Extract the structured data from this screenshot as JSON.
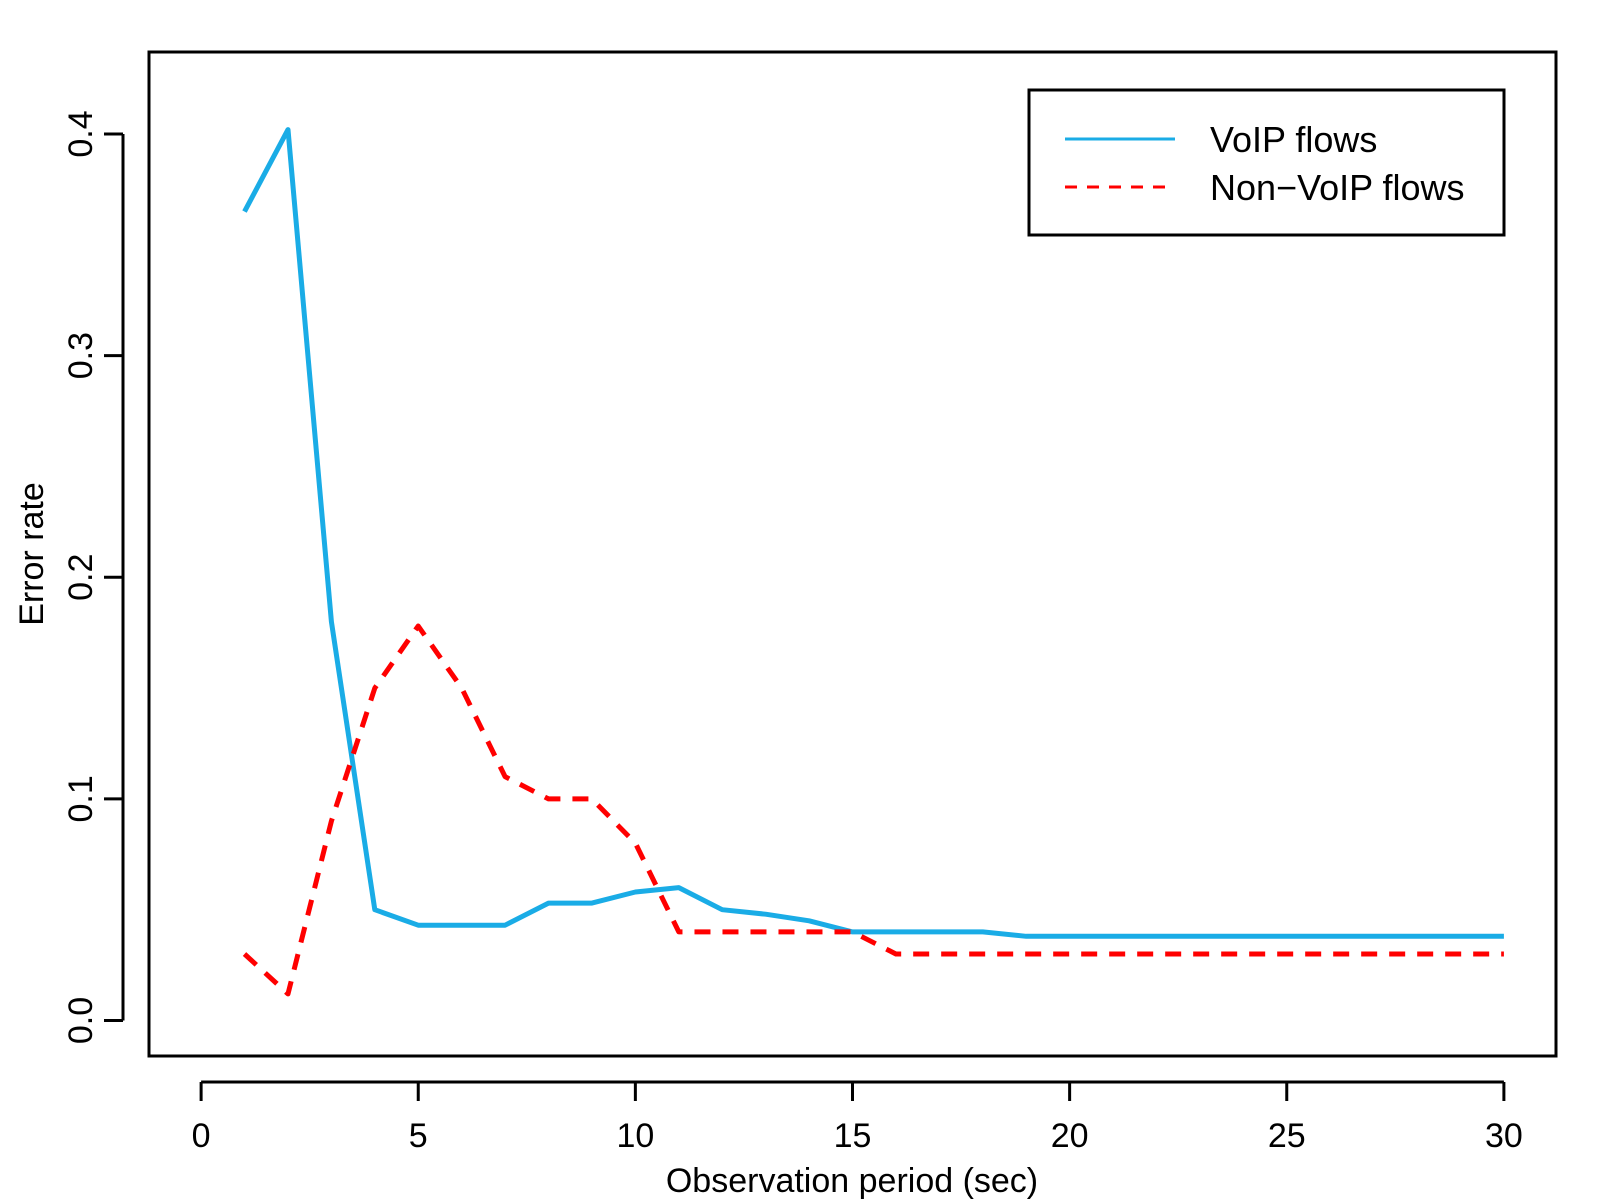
{
  "chart_data": {
    "type": "line",
    "title": "",
    "xlabel": "Observation period (sec)",
    "ylabel": "Error rate",
    "xlim": [
      -1.2,
      31.2
    ],
    "ylim": [
      -0.016,
      0.437
    ],
    "x_ticks": [
      "0",
      "5",
      "10",
      "15",
      "20",
      "25",
      "30"
    ],
    "y_ticks": [
      "0.0",
      "0.1",
      "0.2",
      "0.3",
      "0.4"
    ],
    "grid": false,
    "legend_position": "top-right",
    "x": [
      1,
      2,
      3,
      4,
      5,
      6,
      7,
      8,
      9,
      10,
      11,
      12,
      13,
      14,
      15,
      16,
      17,
      18,
      19,
      20,
      21,
      22,
      23,
      24,
      25,
      26,
      27,
      28,
      29,
      30
    ],
    "series": [
      {
        "name": "VoIP flows",
        "color": "#1AACE6",
        "style": "solid",
        "values": [
          0.365,
          0.402,
          0.18,
          0.05,
          0.043,
          0.043,
          0.043,
          0.053,
          0.053,
          0.058,
          0.06,
          0.05,
          0.048,
          0.045,
          0.04,
          0.04,
          0.04,
          0.04,
          0.038,
          0.038,
          0.038,
          0.038,
          0.038,
          0.038,
          0.038,
          0.038,
          0.038,
          0.038,
          0.038,
          0.038
        ]
      },
      {
        "name": "Non−VoIP flows",
        "color": "#FF0000",
        "style": "dashed",
        "values": [
          0.03,
          0.012,
          0.09,
          0.15,
          0.178,
          0.15,
          0.11,
          0.1,
          0.1,
          0.08,
          0.04,
          0.04,
          0.04,
          0.04,
          0.04,
          0.03,
          0.03,
          0.03,
          0.03,
          0.03,
          0.03,
          0.03,
          0.03,
          0.03,
          0.03,
          0.03,
          0.03,
          0.03,
          0.03,
          0.03
        ]
      }
    ]
  }
}
